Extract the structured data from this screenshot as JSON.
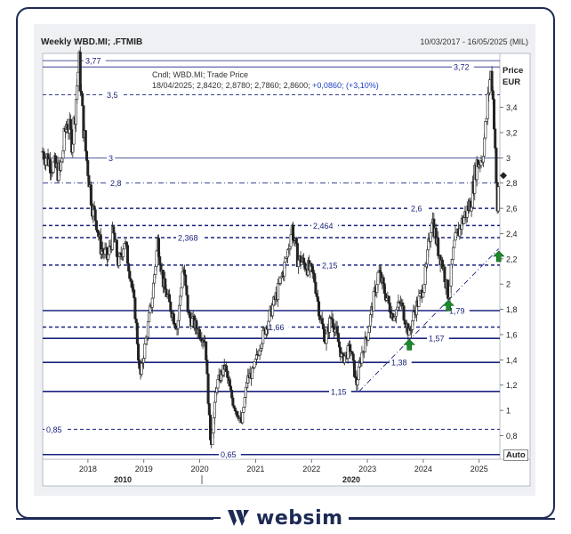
{
  "header": {
    "title": "Weekly WBD.MI; .FTMIB",
    "date_range": "10/03/2017 - 16/05/2025 (MIL)"
  },
  "info": {
    "line1": "Cndl; WBD.MI; Trade Price",
    "line2_prefix": "18/04/2025; 2,8420; 2,8780; 2,7860; 2,8600; ",
    "line2_change": "+0,0860; (+3,10%)"
  },
  "axis": {
    "price_label": "Price",
    "unit_label": "EUR",
    "auto_label": "Auto",
    "y_ticks": [
      "3,4",
      "3,2",
      "3",
      "2,8",
      "2,6",
      "2,4",
      "2,2",
      "2",
      "1,8",
      "1,6",
      "1,4",
      "1,2",
      "1",
      "0,8"
    ],
    "x_years": [
      "2018",
      "2019",
      "2020",
      "2021",
      "2022",
      "2023",
      "2024",
      "2025"
    ],
    "x_decades": [
      "2010",
      "2020"
    ]
  },
  "brand": {
    "name": "websim",
    "color": "#1d2a55"
  },
  "chart_data": {
    "type": "candlestick",
    "title": "Weekly WBD.MI; .FTMIB",
    "ylabel": "Price EUR",
    "ylim": [
      0.62,
      3.82
    ],
    "x_range": [
      "2017-03-10",
      "2025-05-16"
    ],
    "last_candle": {
      "date": "18/04/2025",
      "open": 2.842,
      "high": 2.878,
      "low": 2.786,
      "close": 2.86,
      "change": 0.086,
      "change_pct": 3.1
    },
    "price_path": [
      {
        "t": 2017.19,
        "v": 3.05
      },
      {
        "t": 2017.35,
        "v": 2.95
      },
      {
        "t": 2017.5,
        "v": 2.88
      },
      {
        "t": 2017.62,
        "v": 3.3
      },
      {
        "t": 2017.72,
        "v": 3.12
      },
      {
        "t": 2017.8,
        "v": 3.55
      },
      {
        "t": 2017.84,
        "v": 3.77
      },
      {
        "t": 2017.9,
        "v": 3.35
      },
      {
        "t": 2017.96,
        "v": 3.05
      },
      {
        "t": 2018.08,
        "v": 2.6
      },
      {
        "t": 2018.15,
        "v": 2.5
      },
      {
        "t": 2018.22,
        "v": 2.3
      },
      {
        "t": 2018.35,
        "v": 2.2
      },
      {
        "t": 2018.45,
        "v": 2.4
      },
      {
        "t": 2018.55,
        "v": 2.15
      },
      {
        "t": 2018.65,
        "v": 2.35
      },
      {
        "t": 2018.75,
        "v": 2.1
      },
      {
        "t": 2018.85,
        "v": 1.75
      },
      {
        "t": 2018.93,
        "v": 1.25
      },
      {
        "t": 2019.05,
        "v": 1.6
      },
      {
        "t": 2019.15,
        "v": 1.9
      },
      {
        "t": 2019.25,
        "v": 2.35
      },
      {
        "t": 2019.35,
        "v": 2.0
      },
      {
        "t": 2019.45,
        "v": 1.85
      },
      {
        "t": 2019.6,
        "v": 1.65
      },
      {
        "t": 2019.7,
        "v": 2.15
      },
      {
        "t": 2019.8,
        "v": 1.75
      },
      {
        "t": 2019.95,
        "v": 1.65
      },
      {
        "t": 2020.1,
        "v": 1.55
      },
      {
        "t": 2020.15,
        "v": 1.1
      },
      {
        "t": 2020.2,
        "v": 0.7
      },
      {
        "t": 2020.3,
        "v": 1.2
      },
      {
        "t": 2020.45,
        "v": 1.35
      },
      {
        "t": 2020.6,
        "v": 1.05
      },
      {
        "t": 2020.75,
        "v": 0.9
      },
      {
        "t": 2020.85,
        "v": 1.25
      },
      {
        "t": 2020.95,
        "v": 1.3
      },
      {
        "t": 2021.1,
        "v": 1.55
      },
      {
        "t": 2021.25,
        "v": 1.75
      },
      {
        "t": 2021.4,
        "v": 1.95
      },
      {
        "t": 2021.55,
        "v": 2.2
      },
      {
        "t": 2021.65,
        "v": 2.45
      },
      {
        "t": 2021.75,
        "v": 2.2
      },
      {
        "t": 2021.9,
        "v": 2.15
      },
      {
        "t": 2022.05,
        "v": 2.05
      },
      {
        "t": 2022.15,
        "v": 1.75
      },
      {
        "t": 2022.25,
        "v": 1.55
      },
      {
        "t": 2022.35,
        "v": 1.75
      },
      {
        "t": 2022.45,
        "v": 1.6
      },
      {
        "t": 2022.55,
        "v": 1.4
      },
      {
        "t": 2022.7,
        "v": 1.5
      },
      {
        "t": 2022.8,
        "v": 1.2
      },
      {
        "t": 2022.9,
        "v": 1.45
      },
      {
        "t": 2023.0,
        "v": 1.6
      },
      {
        "t": 2023.1,
        "v": 1.85
      },
      {
        "t": 2023.2,
        "v": 2.1
      },
      {
        "t": 2023.3,
        "v": 1.95
      },
      {
        "t": 2023.45,
        "v": 1.75
      },
      {
        "t": 2023.6,
        "v": 1.85
      },
      {
        "t": 2023.75,
        "v": 1.6
      },
      {
        "t": 2023.85,
        "v": 1.8
      },
      {
        "t": 2023.95,
        "v": 1.9
      },
      {
        "t": 2024.05,
        "v": 2.1
      },
      {
        "t": 2024.15,
        "v": 2.55
      },
      {
        "t": 2024.25,
        "v": 2.3
      },
      {
        "t": 2024.35,
        "v": 2.15
      },
      {
        "t": 2024.45,
        "v": 1.9
      },
      {
        "t": 2024.55,
        "v": 2.3
      },
      {
        "t": 2024.65,
        "v": 2.45
      },
      {
        "t": 2024.75,
        "v": 2.55
      },
      {
        "t": 2024.85,
        "v": 2.65
      },
      {
        "t": 2024.95,
        "v": 2.95
      },
      {
        "t": 2025.05,
        "v": 3.0
      },
      {
        "t": 2025.12,
        "v": 3.25
      },
      {
        "t": 2025.18,
        "v": 3.6
      },
      {
        "t": 2025.22,
        "v": 3.68
      },
      {
        "t": 2025.28,
        "v": 3.2
      },
      {
        "t": 2025.32,
        "v": 2.5
      },
      {
        "t": 2025.35,
        "v": 2.86
      }
    ],
    "horizontal_levels": [
      {
        "value": 3.77,
        "label": "3,77",
        "style": "solid-thin",
        "label_pos": "left"
      },
      {
        "value": 3.72,
        "label": "3,72",
        "style": "solid-thin",
        "label_pos": "right"
      },
      {
        "value": 3.5,
        "label": "3,5",
        "style": "dashed",
        "label_pos": "left"
      },
      {
        "value": 3.0,
        "label": "3",
        "style": "solid-thin",
        "label_pos": "left"
      },
      {
        "value": 2.8,
        "label": "2,8",
        "style": "dashdot",
        "label_pos": "left"
      },
      {
        "value": 2.6,
        "label": "2,6",
        "style": "dashed-bold",
        "label_pos": "right"
      },
      {
        "value": 2.464,
        "label": "2,464",
        "style": "dashed-bold",
        "label_pos": "mid"
      },
      {
        "value": 2.368,
        "label": "2,368",
        "style": "dashed-bold",
        "label_pos": "left"
      },
      {
        "value": 2.15,
        "label": "2,15",
        "style": "dashed-bold",
        "label_pos": "mid"
      },
      {
        "value": 1.79,
        "label": "1,79",
        "style": "solid-bold",
        "label_pos": "right"
      },
      {
        "value": 1.66,
        "label": "1,66",
        "style": "dashed-bold",
        "label_pos": "left"
      },
      {
        "value": 1.57,
        "label": "1,57",
        "style": "solid-bold",
        "label_pos": "right"
      },
      {
        "value": 1.38,
        "label": "1,38",
        "style": "solid-bold",
        "label_pos": "mid"
      },
      {
        "value": 1.15,
        "label": "1,15",
        "style": "solid-bold",
        "label_pos": "mid"
      },
      {
        "value": 0.85,
        "label": "0,85",
        "style": "dashed",
        "label_pos": "left"
      },
      {
        "value": 0.65,
        "label": "0,65",
        "style": "solid-bold",
        "label_pos": "mid"
      }
    ],
    "trendline": {
      "from": {
        "t": 2022.85,
        "v": 1.15
      },
      "to": {
        "t": 2025.35,
        "v": 2.28
      },
      "style": "dashdot"
    },
    "up_arrows": [
      {
        "t": 2023.75,
        "v": 1.52
      },
      {
        "t": 2024.45,
        "v": 1.83
      },
      {
        "t": 2025.35,
        "v": 2.22
      }
    ],
    "current_marker": {
      "v": 2.86
    }
  }
}
